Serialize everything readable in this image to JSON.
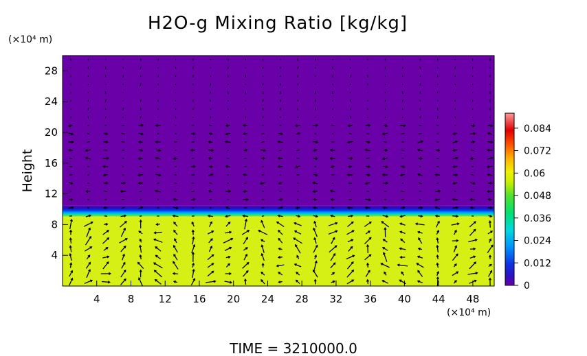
{
  "chart_data": {
    "type": "heatmap",
    "title": "H2O-g Mixing Ratio [kg/kg]",
    "ylabel": "Height",
    "y_unit": "(×10⁴ m)",
    "x_unit": "(×10⁴ m)",
    "xlim": [
      0,
      50.5
    ],
    "ylim": [
      0,
      30
    ],
    "x_ticks": [
      "4",
      "8",
      "12",
      "16",
      "20",
      "24",
      "28",
      "32",
      "36",
      "40",
      "44",
      "48"
    ],
    "y_ticks": [
      "4",
      "8",
      "12",
      "16",
      "20",
      "24",
      "28"
    ],
    "colorbar": {
      "min": 0,
      "max": 0.092,
      "ticks": [
        "0",
        "0.012",
        "0.024",
        "0.036",
        "0.048",
        "0.06",
        "0.072",
        "0.084"
      ],
      "colors": [
        "#6a00a8",
        "#2020c8",
        "#0060ff",
        "#00b8ff",
        "#00e0b0",
        "#40e040",
        "#c0f000",
        "#f0f000",
        "#ffb000",
        "#ff5000",
        "#e00000",
        "#ff9090"
      ]
    },
    "fields": {
      "upper_layer": {
        "y_range": [
          10.5,
          30
        ],
        "value": 0.0,
        "color": "#6a00a8"
      },
      "transition_layer": {
        "y_range": [
          9,
          10.5
        ]
      },
      "lower_layer": {
        "y_range": [
          0,
          9
        ],
        "value": 0.056,
        "color": "#d6f016"
      }
    },
    "vectors": "wind vector field overlay",
    "time_label": "TIME  =  3210000.0"
  }
}
